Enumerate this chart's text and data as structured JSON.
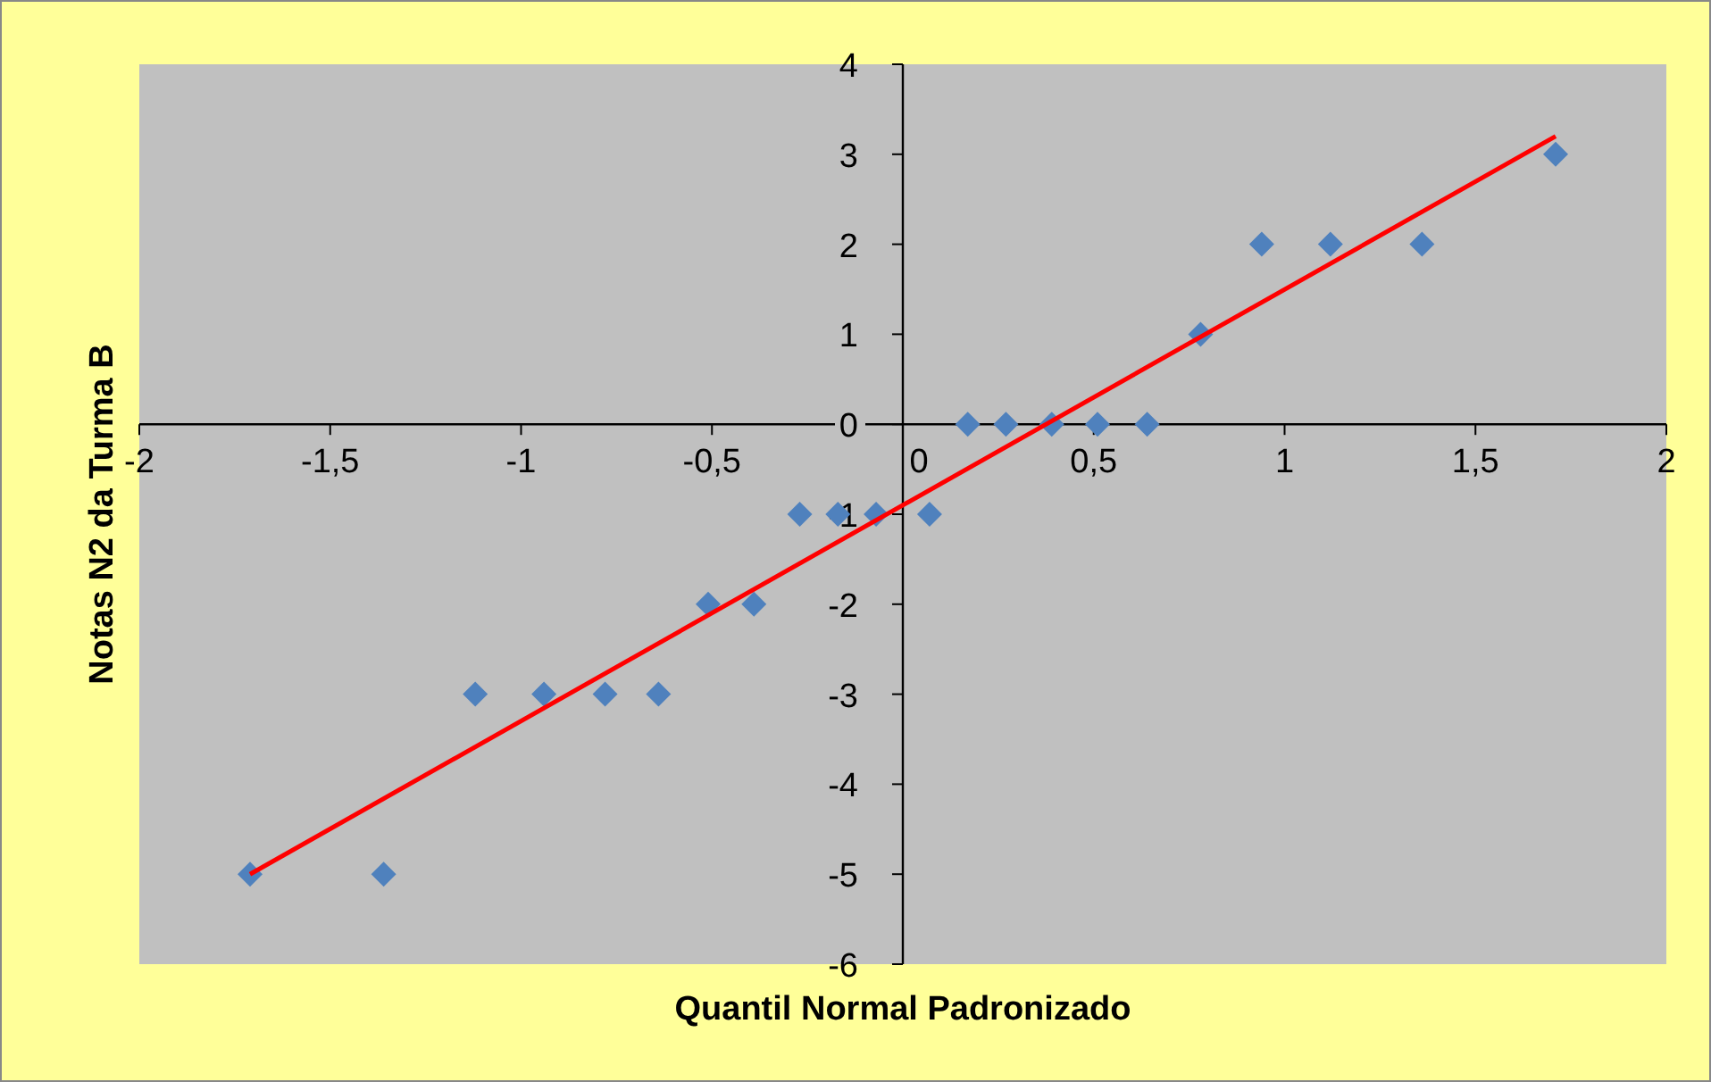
{
  "chart_data": {
    "type": "scatter",
    "xlabel": "Quantil Normal Padronizado",
    "ylabel": "Notas N2 da Turma B",
    "xlim": [
      -2,
      2
    ],
    "ylim": [
      -6,
      4
    ],
    "xticks": [
      -2,
      {
        "value": -1.5,
        "label": "-1,5"
      },
      -1,
      {
        "value": -0.5,
        "label": "-0,5"
      },
      0,
      {
        "value": 0.5,
        "label": "0,5"
      },
      1,
      {
        "value": 1.5,
        "label": "1,5"
      },
      2
    ],
    "yticks": [
      -6,
      -5,
      -4,
      -3,
      -2,
      -1,
      0,
      1,
      2,
      3,
      4
    ],
    "grid": false,
    "series": [
      {
        "color": "#4f81bd",
        "marker": "diamond",
        "x": [
          -1.71,
          -1.36,
          -1.12,
          -0.94,
          -0.78,
          -0.64,
          -0.51,
          -0.39,
          -0.27,
          -0.17,
          -0.07,
          0.07,
          0.17,
          0.27,
          0.39,
          0.51,
          0.64,
          0.78,
          0.94,
          1.12,
          1.36,
          1.71
        ],
        "values": [
          -5,
          -5,
          -3,
          -3,
          -3,
          -3,
          -2,
          -2,
          -1,
          -1,
          -1,
          -1,
          0,
          0,
          0,
          0,
          0,
          1,
          2,
          2,
          2,
          3
        ]
      },
      {
        "type": "line",
        "color": "#ff0000",
        "marker": "none",
        "x": [
          -1.71,
          1.71
        ],
        "values": [
          -5.0,
          3.2
        ]
      }
    ]
  }
}
